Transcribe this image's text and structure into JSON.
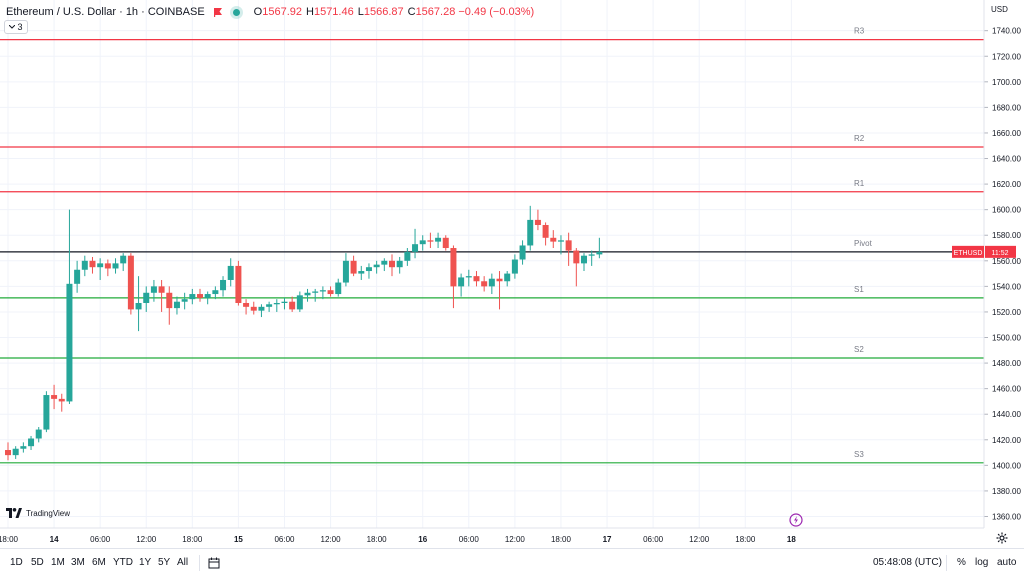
{
  "header": {
    "title": "Ethereum / U.S. Dollar · 1h · COINBASE",
    "ohlc": [
      {
        "key": "O",
        "value": "1567.92"
      },
      {
        "key": "H",
        "value": "1571.46"
      },
      {
        "key": "L",
        "value": "1566.87"
      },
      {
        "key": "C",
        "value": "1567.28 −0.49 (−0.03%)"
      }
    ],
    "collapse_count": "3",
    "currency": "USD"
  },
  "chart_data": {
    "type": "candlestick",
    "y_ticks": [
      1360,
      1380,
      1400,
      1420,
      1440,
      1460,
      1480,
      1500,
      1520,
      1540,
      1560,
      1580,
      1600,
      1620,
      1640,
      1660,
      1680,
      1700,
      1720,
      1740
    ],
    "y_tick_labels": [
      "1360.00",
      "1380.00",
      "1400.00",
      "1420.00",
      "1440.00",
      "1460.00",
      "1480.00",
      "1500.00",
      "1520.00",
      "1540.00",
      "1560.00",
      "1580.00",
      "1600.00",
      "1620.00",
      "1640.00",
      "1660.00",
      "1680.00",
      "1700.00",
      "1720.00",
      "1740.00"
    ],
    "ylim": [
      1351,
      1764
    ],
    "x_tick_labels": [
      {
        "idx": 0,
        "label": "18:00"
      },
      {
        "idx": 6,
        "label": "14",
        "bold": true
      },
      {
        "idx": 12,
        "label": "06:00"
      },
      {
        "idx": 18,
        "label": "12:00"
      },
      {
        "idx": 24,
        "label": "18:00"
      },
      {
        "idx": 30,
        "label": "15",
        "bold": true
      },
      {
        "idx": 36,
        "label": "06:00"
      },
      {
        "idx": 42,
        "label": "12:00"
      },
      {
        "idx": 48,
        "label": "18:00"
      },
      {
        "idx": 54,
        "label": "16",
        "bold": true
      },
      {
        "idx": 60,
        "label": "06:00"
      },
      {
        "idx": 66,
        "label": "12:00"
      },
      {
        "idx": 72,
        "label": "18:00"
      },
      {
        "idx": 78,
        "label": "17",
        "bold": true
      },
      {
        "idx": 84,
        "label": "06:00"
      },
      {
        "idx": 90,
        "label": "12:00"
      },
      {
        "idx": 96,
        "label": "18:00"
      },
      {
        "idx": 102,
        "label": "18",
        "bold": true
      }
    ],
    "candles": [
      [
        1412,
        1418,
        1404,
        1408
      ],
      [
        1408,
        1415,
        1405,
        1413
      ],
      [
        1413,
        1418,
        1410,
        1415
      ],
      [
        1415,
        1423,
        1412,
        1421
      ],
      [
        1421,
        1430,
        1418,
        1428
      ],
      [
        1428,
        1458,
        1426,
        1455
      ],
      [
        1455,
        1463,
        1444,
        1452
      ],
      [
        1452,
        1456,
        1442,
        1450
      ],
      [
        1450,
        1600,
        1448,
        1542
      ],
      [
        1542,
        1560,
        1535,
        1553
      ],
      [
        1553,
        1564,
        1548,
        1560
      ],
      [
        1560,
        1563,
        1550,
        1555
      ],
      [
        1555,
        1562,
        1545,
        1558
      ],
      [
        1558,
        1561,
        1548,
        1554
      ],
      [
        1554,
        1562,
        1550,
        1558
      ],
      [
        1558,
        1566,
        1552,
        1564
      ],
      [
        1564,
        1566,
        1518,
        1522
      ],
      [
        1522,
        1548,
        1505,
        1527
      ],
      [
        1527,
        1540,
        1520,
        1535
      ],
      [
        1535,
        1545,
        1528,
        1540
      ],
      [
        1540,
        1545,
        1520,
        1535
      ],
      [
        1535,
        1540,
        1510,
        1523
      ],
      [
        1523,
        1532,
        1518,
        1528
      ],
      [
        1528,
        1535,
        1522,
        1530
      ],
      [
        1530,
        1538,
        1526,
        1534
      ],
      [
        1534,
        1538,
        1528,
        1531
      ],
      [
        1531,
        1536,
        1526,
        1534
      ],
      [
        1534,
        1540,
        1530,
        1537
      ],
      [
        1537,
        1548,
        1532,
        1545
      ],
      [
        1545,
        1562,
        1540,
        1556
      ],
      [
        1556,
        1560,
        1525,
        1527
      ],
      [
        1527,
        1530,
        1518,
        1524
      ],
      [
        1524,
        1528,
        1518,
        1521
      ],
      [
        1521,
        1526,
        1516,
        1524
      ],
      [
        1524,
        1528,
        1520,
        1526
      ],
      [
        1526,
        1530,
        1520,
        1527
      ],
      [
        1527,
        1531,
        1522,
        1528
      ],
      [
        1528,
        1532,
        1520,
        1522
      ],
      [
        1522,
        1536,
        1520,
        1533
      ],
      [
        1533,
        1538,
        1528,
        1535
      ],
      [
        1535,
        1538,
        1528,
        1536
      ],
      [
        1536,
        1540,
        1530,
        1537
      ],
      [
        1537,
        1540,
        1532,
        1534
      ],
      [
        1534,
        1546,
        1532,
        1543
      ],
      [
        1543,
        1566,
        1540,
        1560
      ],
      [
        1560,
        1564,
        1548,
        1550
      ],
      [
        1550,
        1556,
        1545,
        1552
      ],
      [
        1552,
        1558,
        1546,
        1555
      ],
      [
        1555,
        1560,
        1550,
        1557
      ],
      [
        1557,
        1562,
        1552,
        1560
      ],
      [
        1560,
        1565,
        1548,
        1555
      ],
      [
        1555,
        1563,
        1550,
        1560
      ],
      [
        1560,
        1570,
        1556,
        1567
      ],
      [
        1567,
        1585,
        1562,
        1573
      ],
      [
        1573,
        1580,
        1568,
        1576
      ],
      [
        1576,
        1582,
        1570,
        1575
      ],
      [
        1575,
        1582,
        1570,
        1578
      ],
      [
        1578,
        1580,
        1568,
        1570
      ],
      [
        1570,
        1572,
        1523,
        1540
      ],
      [
        1540,
        1550,
        1532,
        1547
      ],
      [
        1547,
        1553,
        1540,
        1548
      ],
      [
        1548,
        1552,
        1540,
        1544
      ],
      [
        1544,
        1548,
        1536,
        1540
      ],
      [
        1540,
        1550,
        1534,
        1546
      ],
      [
        1546,
        1552,
        1522,
        1544
      ],
      [
        1544,
        1552,
        1540,
        1550
      ],
      [
        1550,
        1565,
        1546,
        1561
      ],
      [
        1561,
        1576,
        1557,
        1572
      ],
      [
        1572,
        1603,
        1568,
        1592
      ],
      [
        1592,
        1600,
        1584,
        1588
      ],
      [
        1588,
        1590,
        1572,
        1578
      ],
      [
        1578,
        1584,
        1570,
        1575
      ],
      [
        1575,
        1580,
        1565,
        1576
      ],
      [
        1576,
        1582,
        1556,
        1568
      ],
      [
        1568,
        1570,
        1540,
        1558
      ],
      [
        1558,
        1566,
        1552,
        1564
      ],
      [
        1564,
        1568,
        1556,
        1565
      ],
      [
        1565,
        1578,
        1562,
        1567
      ]
    ],
    "pivot_lines": [
      {
        "name": "R3",
        "value": 1733,
        "color": "#f23645"
      },
      {
        "name": "R2",
        "value": 1649,
        "color": "#f23645"
      },
      {
        "name": "R1",
        "value": 1614,
        "color": "#f23645"
      },
      {
        "name": "Pivot",
        "value": 1567,
        "color": "#131722"
      },
      {
        "name": "S1",
        "value": 1531,
        "color": "#22ab3a"
      },
      {
        "name": "S2",
        "value": 1484,
        "color": "#22ab3a"
      },
      {
        "name": "S3",
        "value": 1402,
        "color": "#22ab3a"
      }
    ],
    "price_tag": {
      "symbol": "ETHUSD",
      "countdown": "11:52",
      "value": 1567,
      "color": "#f23645"
    },
    "up_color": "#26a69a",
    "down_color": "#ef5350"
  },
  "toolbar": {
    "timeframes": [
      "1D",
      "5D",
      "1M",
      "3M",
      "6M",
      "YTD",
      "1Y",
      "5Y",
      "All"
    ],
    "clock": "05:48:08 (UTC)",
    "percent_label": "%",
    "log_label": "log",
    "auto_label": "auto",
    "gear_icon": "gear-icon",
    "compare_icon": "calendar-range-icon"
  },
  "watermark": "TradingView"
}
